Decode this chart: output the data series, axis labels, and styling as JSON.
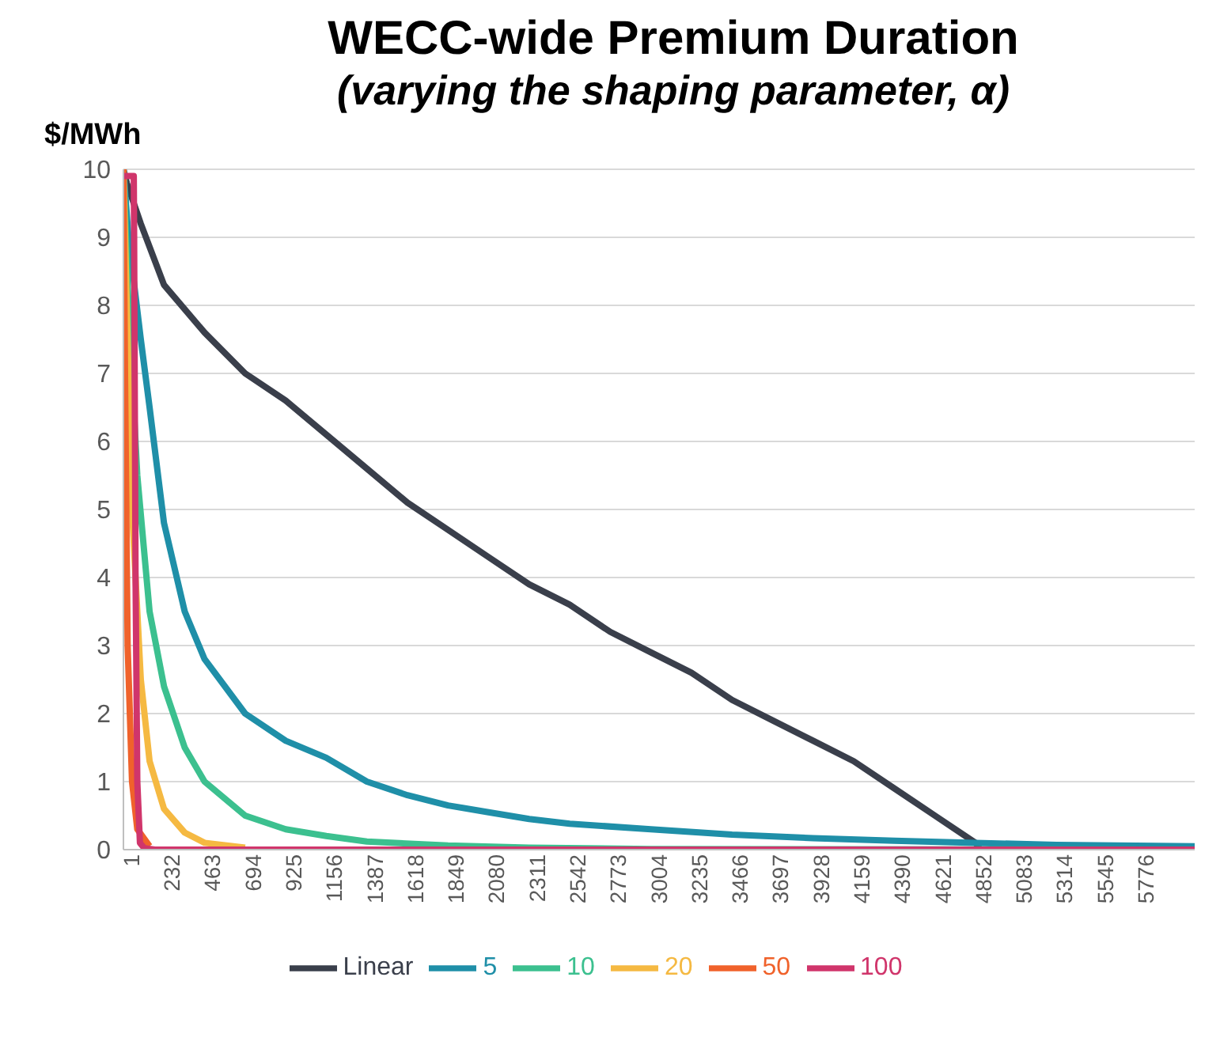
{
  "chart_data": {
    "type": "line",
    "title": "WECC-wide Premium Duration",
    "subtitle": "(varying the shaping parameter, α)",
    "ylabel": "$/MWh",
    "xlim": [
      1,
      6100
    ],
    "xticks": [
      1,
      232,
      463,
      694,
      925,
      1156,
      1387,
      1618,
      1849,
      2080,
      2311,
      2542,
      2773,
      3004,
      3235,
      3466,
      3697,
      3928,
      4159,
      4390,
      4621,
      4852,
      5083,
      5314,
      5545,
      5776
    ],
    "ylim": [
      0,
      10
    ],
    "yticks": [
      0,
      1,
      2,
      3,
      4,
      5,
      6,
      7,
      8,
      9,
      10
    ],
    "grid": "y",
    "legend": "bottom",
    "marker": "none",
    "line_style": "solid",
    "series": [
      {
        "name": "Linear",
        "color": "#3a3f4b",
        "x": [
          1,
          20,
          100,
          232,
          463,
          694,
          925,
          1156,
          1387,
          1618,
          1849,
          2080,
          2311,
          2542,
          2773,
          3004,
          3235,
          3466,
          3697,
          3928,
          4159,
          4390,
          4621,
          4852,
          4880,
          6100
        ],
        "values": [
          10,
          9.8,
          9.2,
          8.3,
          7.6,
          7.0,
          6.6,
          6.1,
          5.6,
          5.1,
          4.7,
          4.3,
          3.9,
          3.6,
          3.2,
          2.9,
          2.6,
          2.2,
          1.9,
          1.6,
          1.3,
          0.9,
          0.5,
          0.1,
          0,
          0
        ]
      },
      {
        "name": "5",
        "color": "#1f8fa8",
        "x": [
          1,
          30,
          100,
          150,
          232,
          350,
          463,
          694,
          925,
          1156,
          1387,
          1618,
          1849,
          2080,
          2311,
          2542,
          3004,
          3466,
          3928,
          4390,
          4852,
          5314,
          6100
        ],
        "values": [
          10,
          9,
          7.5,
          6.5,
          4.8,
          3.5,
          2.8,
          2.0,
          1.6,
          1.35,
          1.0,
          0.8,
          0.65,
          0.55,
          0.45,
          0.38,
          0.3,
          0.22,
          0.17,
          0.13,
          0.1,
          0.07,
          0.05
        ]
      },
      {
        "name": "10",
        "color": "#3cc08f",
        "x": [
          1,
          30,
          80,
          150,
          232,
          350,
          463,
          694,
          925,
          1156,
          1387,
          1849,
          2311,
          3004,
          6100
        ],
        "values": [
          10,
          8,
          5.5,
          3.5,
          2.4,
          1.5,
          1.0,
          0.5,
          0.3,
          0.2,
          0.12,
          0.06,
          0.03,
          0.01,
          0
        ]
      },
      {
        "name": "20",
        "color": "#f5b942",
        "x": [
          1,
          20,
          50,
          100,
          150,
          232,
          350,
          463,
          694
        ],
        "values": [
          10,
          8,
          5,
          2.5,
          1.3,
          0.6,
          0.25,
          0.1,
          0.03
        ]
      },
      {
        "name": "50",
        "color": "#f0622b",
        "x": [
          1,
          10,
          25,
          50,
          80,
          150
        ],
        "values": [
          10,
          7,
          3,
          1,
          0.3,
          0.05
        ]
      },
      {
        "name": "100",
        "color": "#d0356b",
        "x": [
          1,
          60,
          62,
          70,
          80,
          95,
          120,
          180,
          6100
        ],
        "values": [
          9.9,
          9.9,
          9,
          4,
          1,
          0.1,
          0.02,
          0,
          0
        ]
      }
    ]
  }
}
